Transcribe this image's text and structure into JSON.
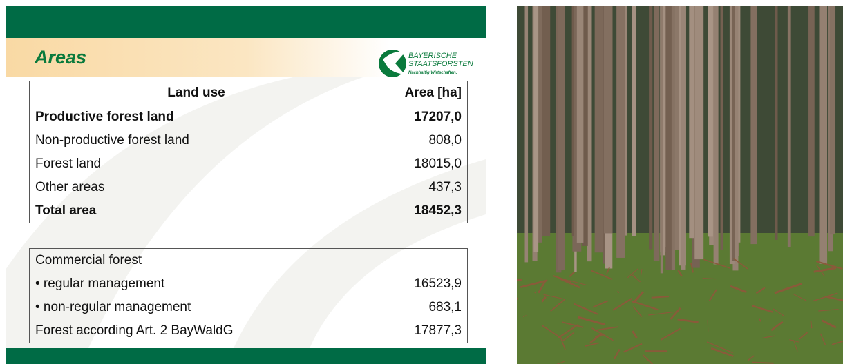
{
  "header": {
    "title": "Areas",
    "logo": {
      "line1": "BAYERISCHE",
      "line2": "STAATSFORSTEN",
      "tagline": "Nachhaltig Wirtschaften."
    }
  },
  "table": {
    "columns": [
      "Land use",
      "Area [ha]"
    ],
    "rows": [
      [
        "Productive forest land",
        "17207,0"
      ],
      [
        "Non-productive forest land",
        "808,0"
      ],
      [
        "Forest land",
        "18015,0"
      ],
      [
        "Other areas",
        "437,3"
      ],
      [
        "Total area",
        "18452,3"
      ]
    ]
  },
  "table2": {
    "rows": [
      [
        "Commercial forest"
      ],
      [
        "• regular management",
        "16523,9"
      ],
      [
        "• non-regular management",
        "683,1"
      ],
      [
        "Forest according Art. 2 BayWaldG",
        "17877,3"
      ]
    ]
  }
}
